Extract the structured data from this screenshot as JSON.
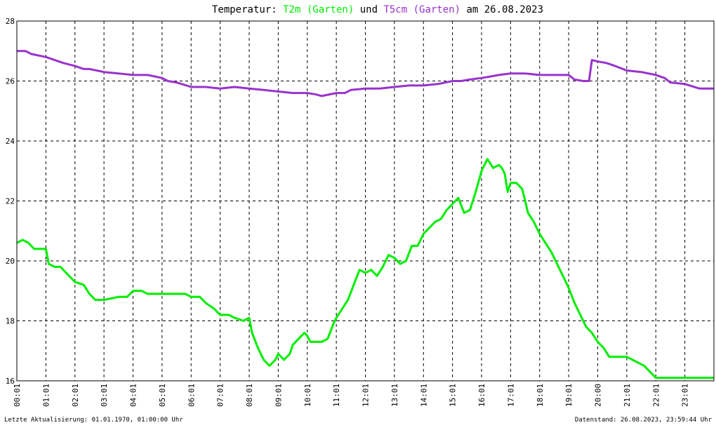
{
  "chart_data": {
    "type": "line",
    "title": {
      "prefix": "Temperatur: ",
      "series1": "T2m (Garten)",
      "middle": " und ",
      "series2": "T5cm (Garten)",
      "suffix": " am 26.08.2023"
    },
    "ylim": [
      16,
      28
    ],
    "yticks": [
      "16",
      "18",
      "20",
      "22",
      "24",
      "26",
      "28"
    ],
    "xlim": [
      0,
      24
    ],
    "xticks": [
      "00:01",
      "01:01",
      "02:01",
      "03:01",
      "04:01",
      "05:01",
      "06:01",
      "07:01",
      "08:01",
      "09:01",
      "10:01",
      "11:01",
      "12:01",
      "13:01",
      "14:01",
      "15:01",
      "16:01",
      "17:01",
      "18:01",
      "19:01",
      "20:00",
      "21:01",
      "22:01",
      "23:01"
    ],
    "grid": true,
    "series": [
      {
        "name": "T2m (Garten)",
        "color": "#00ee00",
        "x": [
          0,
          0.2,
          0.4,
          0.6,
          1.0,
          1.1,
          1.3,
          1.5,
          1.8,
          2.0,
          2.3,
          2.5,
          2.7,
          3.0,
          3.5,
          3.8,
          4.0,
          4.3,
          4.5,
          5.0,
          5.3,
          5.5,
          5.8,
          6.0,
          6.3,
          6.5,
          6.8,
          7.0,
          7.3,
          7.5,
          7.8,
          8.0,
          8.1,
          8.3,
          8.5,
          8.7,
          8.9,
          9.0,
          9.1,
          9.2,
          9.3,
          9.4,
          9.5,
          9.7,
          9.9,
          10.0,
          10.1,
          10.3,
          10.5,
          10.7,
          10.9,
          11.0,
          11.2,
          11.4,
          11.6,
          11.8,
          12.0,
          12.2,
          12.4,
          12.6,
          12.8,
          13.0,
          13.2,
          13.4,
          13.6,
          13.8,
          14.0,
          14.2,
          14.4,
          14.6,
          14.8,
          15.0,
          15.2,
          15.4,
          15.6,
          15.8,
          16.0,
          16.2,
          16.4,
          16.6,
          16.7,
          16.8,
          16.9,
          17.0,
          17.2,
          17.4,
          17.5,
          17.6,
          17.8,
          18.0,
          18.2,
          18.4,
          18.6,
          18.8,
          19.0,
          19.2,
          19.4,
          19.6,
          19.8,
          20.0,
          20.2,
          20.4,
          20.6,
          20.8,
          21.0,
          21.2,
          21.4,
          21.6,
          21.8,
          22.0,
          22.2,
          22.4,
          22.6,
          22.8,
          23.0,
          23.3,
          23.5,
          23.8,
          24.0
        ],
        "values": [
          20.6,
          20.7,
          20.6,
          20.4,
          20.4,
          19.9,
          19.8,
          19.8,
          19.5,
          19.3,
          19.2,
          18.9,
          18.7,
          18.7,
          18.8,
          18.8,
          19.0,
          19.0,
          18.9,
          18.9,
          18.9,
          18.9,
          18.9,
          18.8,
          18.8,
          18.6,
          18.4,
          18.2,
          18.2,
          18.1,
          18.0,
          18.1,
          17.6,
          17.1,
          16.7,
          16.5,
          16.7,
          16.9,
          16.8,
          16.7,
          16.8,
          16.9,
          17.2,
          17.4,
          17.6,
          17.5,
          17.3,
          17.3,
          17.3,
          17.4,
          17.9,
          18.1,
          18.4,
          18.7,
          19.2,
          19.7,
          19.6,
          19.7,
          19.5,
          19.8,
          20.2,
          20.1,
          19.9,
          20.0,
          20.5,
          20.5,
          20.9,
          21.1,
          21.3,
          21.4,
          21.7,
          21.9,
          22.1,
          21.6,
          21.7,
          22.3,
          23.0,
          23.4,
          23.1,
          23.2,
          23.1,
          22.9,
          22.3,
          22.6,
          22.6,
          22.4,
          22.0,
          21.6,
          21.3,
          20.9,
          20.6,
          20.3,
          19.9,
          19.5,
          19.1,
          18.6,
          18.2,
          17.8,
          17.6,
          17.3,
          17.1,
          16.8,
          16.8,
          16.8,
          16.8,
          16.7,
          16.6,
          16.5,
          16.3,
          16.1,
          16.1,
          16.1,
          16.1,
          16.1,
          16.1,
          16.1,
          16.1,
          16.1,
          16.1
        ],
        "comment_points": []
      },
      {
        "name": "T5cm (Garten)",
        "color": "#9933cc",
        "x": [
          0,
          0.3,
          0.5,
          1.0,
          1.3,
          1.6,
          2.0,
          2.3,
          2.5,
          3.0,
          3.5,
          4.0,
          4.5,
          5.0,
          5.2,
          5.5,
          6.0,
          6.5,
          7.0,
          7.5,
          8.0,
          8.5,
          9.0,
          9.5,
          10.0,
          10.3,
          10.5,
          11.0,
          11.3,
          11.5,
          12.0,
          12.5,
          13.0,
          13.5,
          14.0,
          14.5,
          15.0,
          15.3,
          15.6,
          16.0,
          16.3,
          16.6,
          17.0,
          17.5,
          18.0,
          18.5,
          19.0,
          19.2,
          19.5,
          19.7,
          19.8,
          20.0,
          20.3,
          20.6,
          21.0,
          21.5,
          22.0,
          22.3,
          22.5,
          23.0,
          23.5,
          24.0
        ],
        "values": [
          27.0,
          27.0,
          26.9,
          26.8,
          26.7,
          26.6,
          26.5,
          26.4,
          26.4,
          26.3,
          26.25,
          26.2,
          26.2,
          26.1,
          26.0,
          25.95,
          25.8,
          25.8,
          25.75,
          25.8,
          25.75,
          25.7,
          25.65,
          25.6,
          25.6,
          25.55,
          25.5,
          25.6,
          25.6,
          25.7,
          25.75,
          25.75,
          25.8,
          25.85,
          25.85,
          25.9,
          26.0,
          26.0,
          26.05,
          26.1,
          26.15,
          26.2,
          26.25,
          26.25,
          26.2,
          26.2,
          26.2,
          26.05,
          26.0,
          26.0,
          26.7,
          26.65,
          26.6,
          26.5,
          26.35,
          26.3,
          26.2,
          26.1,
          25.95,
          25.9,
          25.75,
          25.75
        ]
      }
    ],
    "footer_left": "Letzte Aktualisierung: 01.01.1970, 01:00:00 Uhr",
    "footer_right": "Datenstand: 26.08.2023, 23:59:44 Uhr"
  }
}
